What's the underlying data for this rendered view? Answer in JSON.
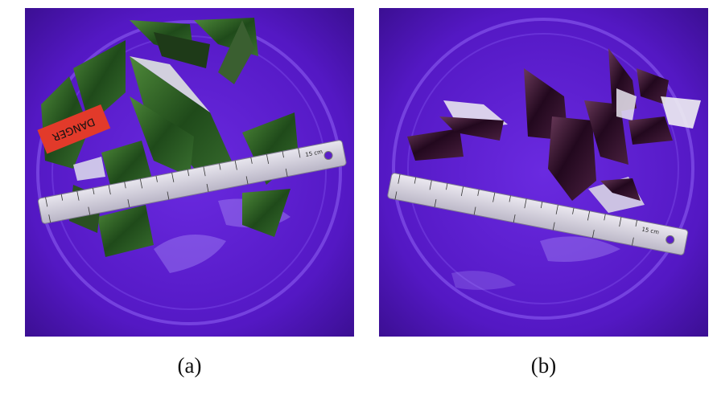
{
  "figure": {
    "panels": [
      {
        "caption": "(a)",
        "label_tag_text": "DANGER",
        "ruler_unit": "15 cm",
        "colors": {
          "background": "#5a1fc8",
          "glass": "#2e5a22",
          "tag": "#e23a2a"
        }
      },
      {
        "caption": "(b)",
        "ruler_unit": "15 cm",
        "colors": {
          "background": "#5a1fc8",
          "glass": "#2a1028"
        }
      }
    ]
  }
}
